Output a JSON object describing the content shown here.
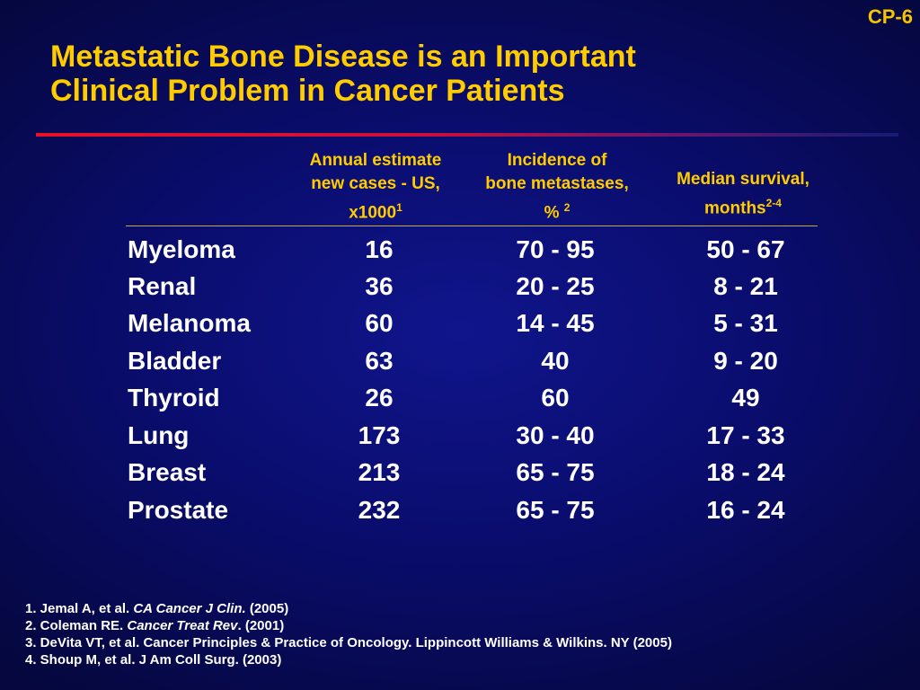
{
  "slide": {
    "id": "CP-6",
    "title_line1": "Metastatic Bone Disease is an Important",
    "title_line2": "Clinical Problem in Cancer Patients"
  },
  "colors": {
    "background": "#0a0d6e",
    "title": "#ffcc00",
    "body_text": "#ffffff",
    "rule_start": "#e8102a",
    "rule_end": "#141c74"
  },
  "chart_data": {
    "type": "table",
    "columns": [
      {
        "lines": [
          "Annual estimate",
          "new cases - US,",
          "x1000"
        ],
        "superscript": "1"
      },
      {
        "lines": [
          "Incidence of",
          "bone metastases,",
          "%"
        ],
        "superscript": "2"
      },
      {
        "lines": [
          "Median survival,",
          "months"
        ],
        "superscript": "2-4"
      }
    ],
    "rows": [
      {
        "cancer": "Myeloma",
        "cases": "16",
        "incidence": "70 - 95",
        "survival": "50 - 67"
      },
      {
        "cancer": "Renal",
        "cases": "36",
        "incidence": "20 - 25",
        "survival": "8 - 21"
      },
      {
        "cancer": "Melanoma",
        "cases": "60",
        "incidence": "14 - 45",
        "survival": "5 - 31"
      },
      {
        "cancer": "Bladder",
        "cases": "63",
        "incidence": "40",
        "survival": "9 - 20"
      },
      {
        "cancer": "Thyroid",
        "cases": "26",
        "incidence": "60",
        "survival": "49"
      },
      {
        "cancer": "Lung",
        "cases": "173",
        "incidence": "30 - 40",
        "survival": "17 - 33"
      },
      {
        "cancer": "Breast",
        "cases": "213",
        "incidence": "65 - 75",
        "survival": "18 - 24"
      },
      {
        "cancer": "Prostate",
        "cases": "232",
        "incidence": "65 - 75",
        "survival": "16 - 24"
      }
    ]
  },
  "references": [
    {
      "prefix": "1. Jemal A, et al. ",
      "italic": "CA Cancer J Clin.",
      "suffix": " (2005)"
    },
    {
      "prefix": "2. Coleman RE. ",
      "italic": "Cancer Treat Rev",
      "suffix": ". (2001)"
    },
    {
      "prefix": "3. DeVita VT, et al. Cancer Principles & Practice of Oncology.  Lippincott Williams & Wilkins. NY (2005)",
      "italic": "",
      "suffix": ""
    },
    {
      "prefix": "4. Shoup M, et al. J Am Coll Surg. (2003)",
      "italic": "",
      "suffix": ""
    }
  ]
}
